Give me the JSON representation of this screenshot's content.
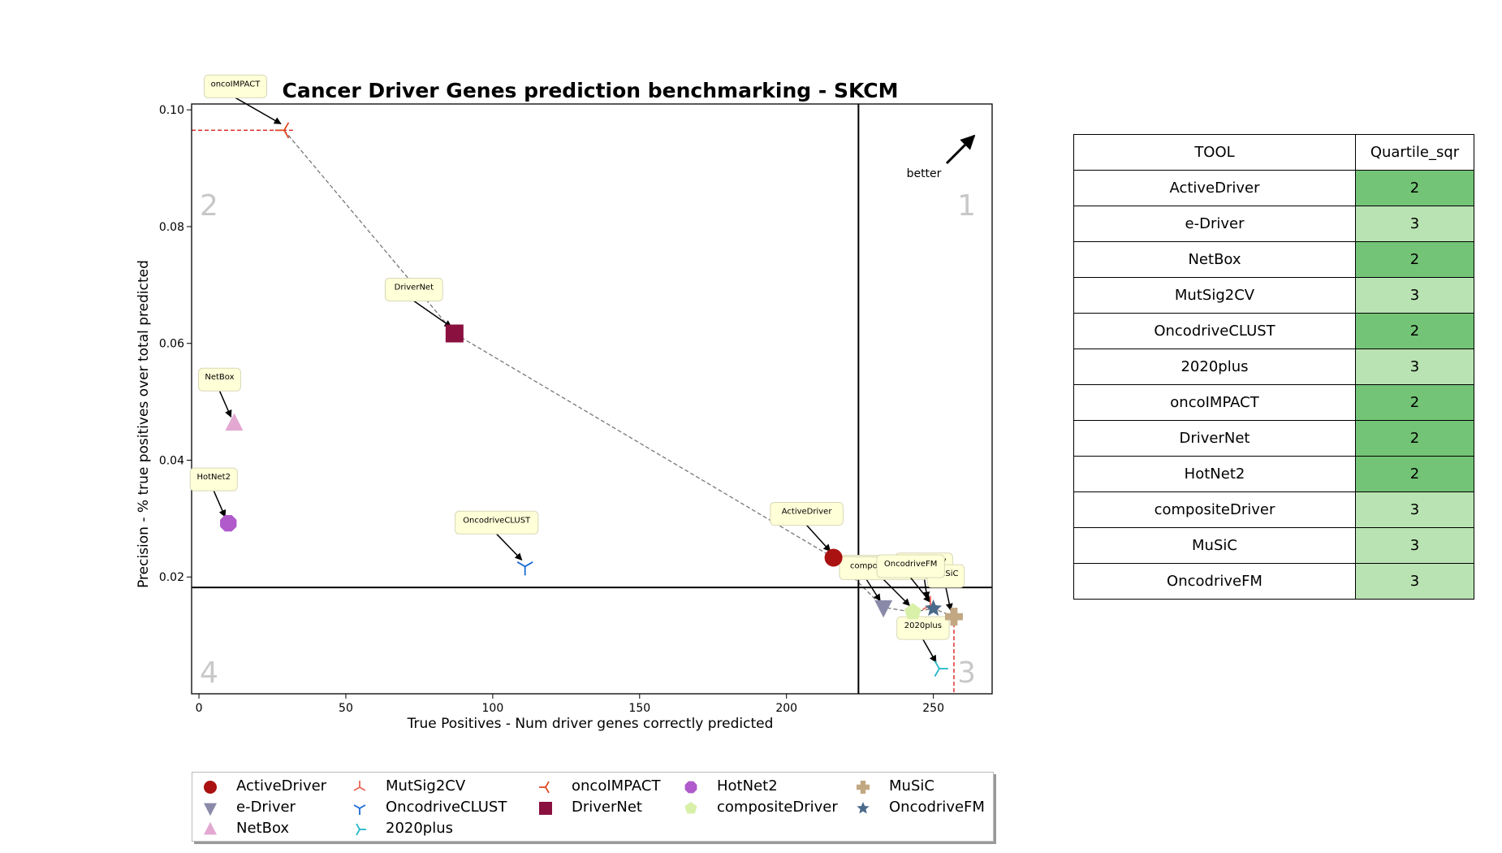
{
  "chart_data": {
    "type": "scatter",
    "title": "Cancer Driver Genes prediction benchmarking - SKCM",
    "xlabel": "True Positives - Num driver genes correctly predicted",
    "ylabel": "Precision - % true positives over total predicted",
    "xlim": [
      -2.5,
      270
    ],
    "ylim": [
      0,
      0.101
    ],
    "xticks": [
      0,
      50,
      100,
      150,
      200,
      250
    ],
    "yticks": [
      0.02,
      0.04,
      0.06,
      0.08,
      0.1
    ],
    "ytick_labels": [
      "0.02",
      "0.04",
      "0.06",
      "0.08",
      "0.10"
    ],
    "grid": false,
    "quadrant_lines": {
      "x": 224.5,
      "y": 0.0182
    },
    "quadrant_labels": [
      "1",
      "2",
      "3",
      "4"
    ],
    "better_label": "better",
    "legend_placement": "bottom",
    "series": [
      {
        "name": "ActiveDriver",
        "x": 216,
        "y": 0.0233,
        "marker": "circle",
        "color": "#aa1111"
      },
      {
        "name": "e-Driver",
        "x": 233,
        "y": 0.0148,
        "marker": "triangle-down",
        "color": "#8a8aa8"
      },
      {
        "name": "NetBox",
        "x": 12,
        "y": 0.0463,
        "marker": "triangle-up",
        "color": "#e2a8d2"
      },
      {
        "name": "MutSig2CV",
        "x": 249,
        "y": 0.0152,
        "marker": "tri-down",
        "color": "#e8675a"
      },
      {
        "name": "OncodriveCLUST",
        "x": 111,
        "y": 0.0218,
        "marker": "tri-up",
        "color": "#1a6ad4"
      },
      {
        "name": "2020plus",
        "x": 252,
        "y": 0.0043,
        "marker": "tri-left",
        "color": "#22b8c8"
      },
      {
        "name": "oncoIMPACT",
        "x": 29,
        "y": 0.0965,
        "marker": "tri-right",
        "color": "#e04a22"
      },
      {
        "name": "DriverNet",
        "x": 87,
        "y": 0.0617,
        "marker": "square",
        "color": "#8a1040"
      },
      {
        "name": "HotNet2",
        "x": 10,
        "y": 0.0292,
        "marker": "octagon",
        "color": "#b05acc"
      },
      {
        "name": "compositeDriver",
        "x": 243,
        "y": 0.014,
        "marker": "pentagon",
        "color": "#d8f0a8"
      },
      {
        "name": "MuSiC",
        "x": 257,
        "y": 0.0132,
        "marker": "plus",
        "color": "#c2a882"
      },
      {
        "name": "OncodriveFM",
        "x": 250,
        "y": 0.0146,
        "marker": "star",
        "color": "#4a6a8a"
      }
    ],
    "pareto_front": [
      "oncoIMPACT",
      "DriverNet",
      "ActiveDriver",
      "e-Driver",
      "compositeDriver",
      "OncodriveFM",
      "MuSiC"
    ],
    "reference_lines": {
      "horizontal_y": 0.0965,
      "vertical_x": 257
    }
  },
  "table": {
    "headers": [
      "TOOL",
      "Quartile_sqr"
    ],
    "rows": [
      {
        "tool": "ActiveDriver",
        "q": "2"
      },
      {
        "tool": "e-Driver",
        "q": "3"
      },
      {
        "tool": "NetBox",
        "q": "2"
      },
      {
        "tool": "MutSig2CV",
        "q": "3"
      },
      {
        "tool": "OncodriveCLUST",
        "q": "2"
      },
      {
        "tool": "2020plus",
        "q": "3"
      },
      {
        "tool": "oncoIMPACT",
        "q": "2"
      },
      {
        "tool": "DriverNet",
        "q": "2"
      },
      {
        "tool": "HotNet2",
        "q": "2"
      },
      {
        "tool": "compositeDriver",
        "q": "3"
      },
      {
        "tool": "MuSiC",
        "q": "3"
      },
      {
        "tool": "OncodriveFM",
        "q": "3"
      }
    ],
    "colors": {
      "2": "#73c476",
      "3": "#b9e3b2"
    }
  },
  "colors": {
    "annotation_fill": "#ffffd8",
    "annotation_border": "#d8d8b8",
    "pareto_line": "#777777",
    "reference_line": "#dd2222"
  }
}
